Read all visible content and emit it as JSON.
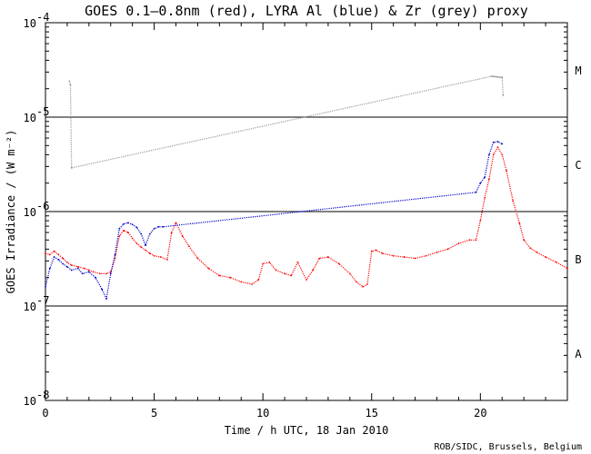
{
  "chart_data": {
    "type": "scatter",
    "title": "GOES 0.1–0.8nm (red), LYRA Al (blue) & Zr (grey) proxy",
    "xlabel": "Time / h UTC, 18 Jan 2010",
    "ylabel": "GOES Irradiance / (W m⁻²)",
    "xlim": [
      0,
      24
    ],
    "ylim": [
      1e-08,
      0.0001
    ],
    "y_scale": "log",
    "x_ticks": [
      0,
      5,
      10,
      15,
      20
    ],
    "y_ticks": [
      {
        "value": 1e-08,
        "mantissa": "10",
        "exp": "-8"
      },
      {
        "value": 1e-07,
        "mantissa": "10",
        "exp": "-7"
      },
      {
        "value": 1e-06,
        "mantissa": "10",
        "exp": "-6"
      },
      {
        "value": 1e-05,
        "mantissa": "10",
        "exp": "-5"
      },
      {
        "value": 0.0001,
        "mantissa": "10",
        "exp": "-4"
      }
    ],
    "flare_class_lines": [
      1e-07,
      1e-06,
      1e-05
    ],
    "flare_classes": [
      {
        "label": "A",
        "value": 3.16e-08
      },
      {
        "label": "B",
        "value": 3.16e-07
      },
      {
        "label": "C",
        "value": 3.16e-06
      },
      {
        "label": "M",
        "value": 3.16e-05
      }
    ],
    "series": [
      {
        "name": "GOES 0.1-0.8nm",
        "color": "#ff0000",
        "x": [
          0.0,
          0.2,
          0.4,
          0.6,
          0.8,
          1.0,
          1.2,
          1.5,
          1.8,
          2.0,
          2.2,
          2.5,
          2.8,
          3.0,
          3.2,
          3.4,
          3.6,
          3.8,
          4.0,
          4.2,
          4.4,
          4.6,
          4.8,
          5.0,
          5.3,
          5.6,
          5.8,
          6.0,
          6.3,
          6.6,
          7.0,
          7.5,
          8.0,
          8.5,
          9.0,
          9.5,
          9.8,
          10.0,
          10.3,
          10.6,
          11.0,
          11.3,
          11.6,
          12.0,
          12.3,
          12.6,
          13.0,
          13.5,
          14.0,
          14.3,
          14.6,
          14.8,
          15.0,
          15.2,
          15.5,
          16.0,
          16.5,
          17.0,
          17.5,
          18.0,
          18.5,
          19.0,
          19.5,
          19.8,
          20.0,
          20.2,
          20.4,
          20.6,
          20.8,
          21.0,
          21.2,
          21.5,
          21.8,
          22.0,
          22.3,
          22.6,
          23.0,
          23.5,
          24.0
        ],
        "y": [
          3.6e-07,
          3.5e-07,
          3.8e-07,
          3.5e-07,
          3.2e-07,
          2.9e-07,
          2.7e-07,
          2.6e-07,
          2.5e-07,
          2.4e-07,
          2.3e-07,
          2.2e-07,
          2.2e-07,
          2.3e-07,
          3.2e-07,
          5.5e-07,
          6.3e-07,
          6e-07,
          5.2e-07,
          4.6e-07,
          4.2e-07,
          3.9e-07,
          3.6e-07,
          3.4e-07,
          3.3e-07,
          3.1e-07,
          6e-07,
          7.6e-07,
          5.5e-07,
          4.3e-07,
          3.2e-07,
          2.5e-07,
          2.1e-07,
          2e-07,
          1.8e-07,
          1.7e-07,
          1.9e-07,
          2.8e-07,
          2.9e-07,
          2.4e-07,
          2.2e-07,
          2.1e-07,
          2.9e-07,
          1.9e-07,
          2.4e-07,
          3.2e-07,
          3.3e-07,
          2.8e-07,
          2.2e-07,
          1.8e-07,
          1.6e-07,
          1.7e-07,
          3.8e-07,
          3.9e-07,
          3.6e-07,
          3.4e-07,
          3.3e-07,
          3.2e-07,
          3.4e-07,
          3.7e-07,
          4e-07,
          4.6e-07,
          5e-07,
          5e-07,
          8e-07,
          1.4e-06,
          2.2e-06,
          4e-06,
          4.8e-06,
          4e-06,
          2.7e-06,
          1.3e-06,
          7.5e-07,
          5e-07,
          4.1e-07,
          3.7e-07,
          3.3e-07,
          2.9e-07,
          2.5e-07
        ]
      },
      {
        "name": "LYRA Al proxy",
        "color": "#0000cc",
        "x": [
          0.0,
          0.2,
          0.4,
          0.6,
          0.8,
          1.0,
          1.2,
          1.5,
          1.7,
          2.0,
          2.3,
          2.6,
          2.8,
          3.0,
          3.2,
          3.4,
          3.6,
          3.8,
          4.0,
          4.2,
          4.4,
          4.6,
          4.8,
          5.0,
          5.2,
          5.4,
          19.8,
          20.0,
          20.2,
          20.4,
          20.6,
          20.8,
          21.0
        ],
        "y": [
          1.6e-07,
          2.5e-07,
          3.3e-07,
          3.1e-07,
          2.8e-07,
          2.6e-07,
          2.4e-07,
          2.5e-07,
          2.2e-07,
          2.3e-07,
          2e-07,
          1.5e-07,
          1.2e-07,
          2.2e-07,
          3.5e-07,
          6.6e-07,
          7.4e-07,
          7.6e-07,
          7.3e-07,
          6.8e-07,
          5.8e-07,
          4.4e-07,
          5.8e-07,
          6.6e-07,
          6.9e-07,
          6.9e-07,
          1.6e-06,
          2e-06,
          2.3e-06,
          4e-06,
          5.4e-06,
          5.5e-06,
          5.2e-06
        ]
      },
      {
        "name": "LYRA Zr proxy",
        "color": "#999999",
        "x": [
          1.1,
          1.15,
          1.2,
          20.5,
          20.6,
          20.7,
          20.8,
          20.9,
          21.0,
          21.05
        ],
        "y": [
          2.4e-05,
          2.2e-05,
          2.9e-06,
          2.7e-05,
          2.7e-05,
          2.68e-05,
          2.66e-05,
          2.65e-05,
          2.64e-05,
          1.7e-05
        ]
      }
    ]
  },
  "credit": "ROB/SIDC, Brussels, Belgium"
}
